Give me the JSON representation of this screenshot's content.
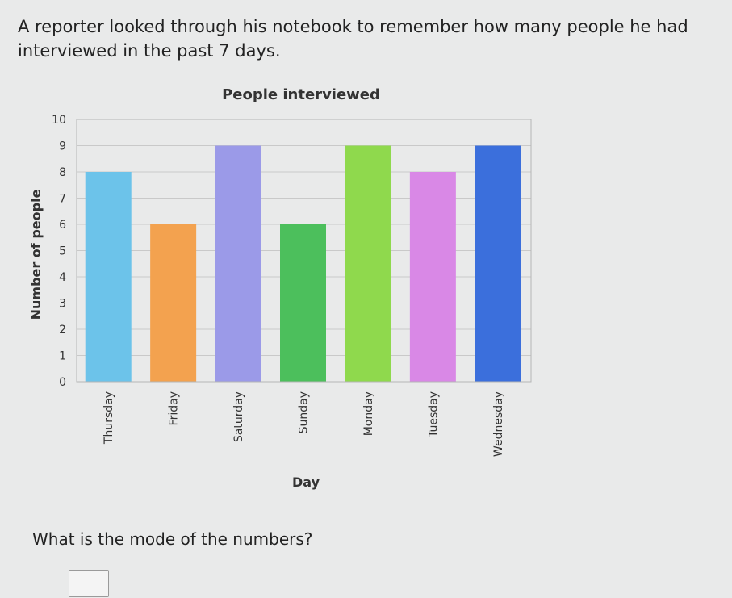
{
  "question": {
    "text": "A reporter looked through his notebook to remember how many people he had interviewed in the past 7 days."
  },
  "prompt": {
    "text": "What is the mode of the numbers?"
  },
  "answer": {
    "value": ""
  },
  "chart_data": {
    "type": "bar",
    "title": "People interviewed",
    "xlabel": "Day",
    "ylabel": "Number of people",
    "categories": [
      "Thursday",
      "Friday",
      "Saturday",
      "Sunday",
      "Monday",
      "Tuesday",
      "Wednesday"
    ],
    "values": [
      8,
      6,
      9,
      6,
      9,
      8,
      9
    ],
    "colors": [
      "#6cc3ea",
      "#f3a24f",
      "#9b9ae8",
      "#4cbf5c",
      "#8fd94d",
      "#d988e6",
      "#3b6fdc"
    ],
    "ylim": [
      0,
      10
    ],
    "yticks": [
      0,
      1,
      2,
      3,
      4,
      5,
      6,
      7,
      8,
      9,
      10
    ],
    "grid": true,
    "legend": "none"
  }
}
